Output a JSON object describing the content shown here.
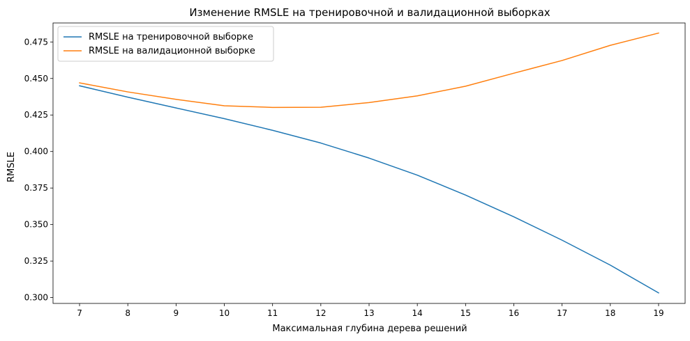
{
  "chart_data": {
    "type": "line",
    "title": "Изменение RMSLE на тренировочной и валидационной выборках",
    "xlabel": "Максимальная глубина дерева решений",
    "ylabel": "RMSLE",
    "x": [
      7,
      8,
      9,
      10,
      11,
      12,
      13,
      14,
      15,
      16,
      17,
      18,
      19
    ],
    "xlim": [
      6.45,
      19.55
    ],
    "ylim": [
      0.296,
      0.488
    ],
    "yticks": [
      "0.300",
      "0.325",
      "0.350",
      "0.375",
      "0.400",
      "0.425",
      "0.450",
      "0.475"
    ],
    "ytick_values": [
      0.3,
      0.325,
      0.35,
      0.375,
      0.4,
      0.425,
      0.45,
      0.475
    ],
    "legend_position": "upper-left",
    "grid": false,
    "series": [
      {
        "name": "RMSLE на тренировочной выборке",
        "color": "#1f77b4",
        "values": [
          0.445,
          0.4372,
          0.4298,
          0.4225,
          0.4145,
          0.4058,
          0.3955,
          0.3838,
          0.3702,
          0.3553,
          0.3393,
          0.3222,
          0.3032
        ]
      },
      {
        "name": "RMSLE на валидационной выборке",
        "color": "#ff7f0e",
        "values": [
          0.447,
          0.4408,
          0.4357,
          0.4313,
          0.4302,
          0.4303,
          0.4335,
          0.4381,
          0.4447,
          0.4536,
          0.4623,
          0.4727,
          0.4811
        ]
      }
    ]
  }
}
